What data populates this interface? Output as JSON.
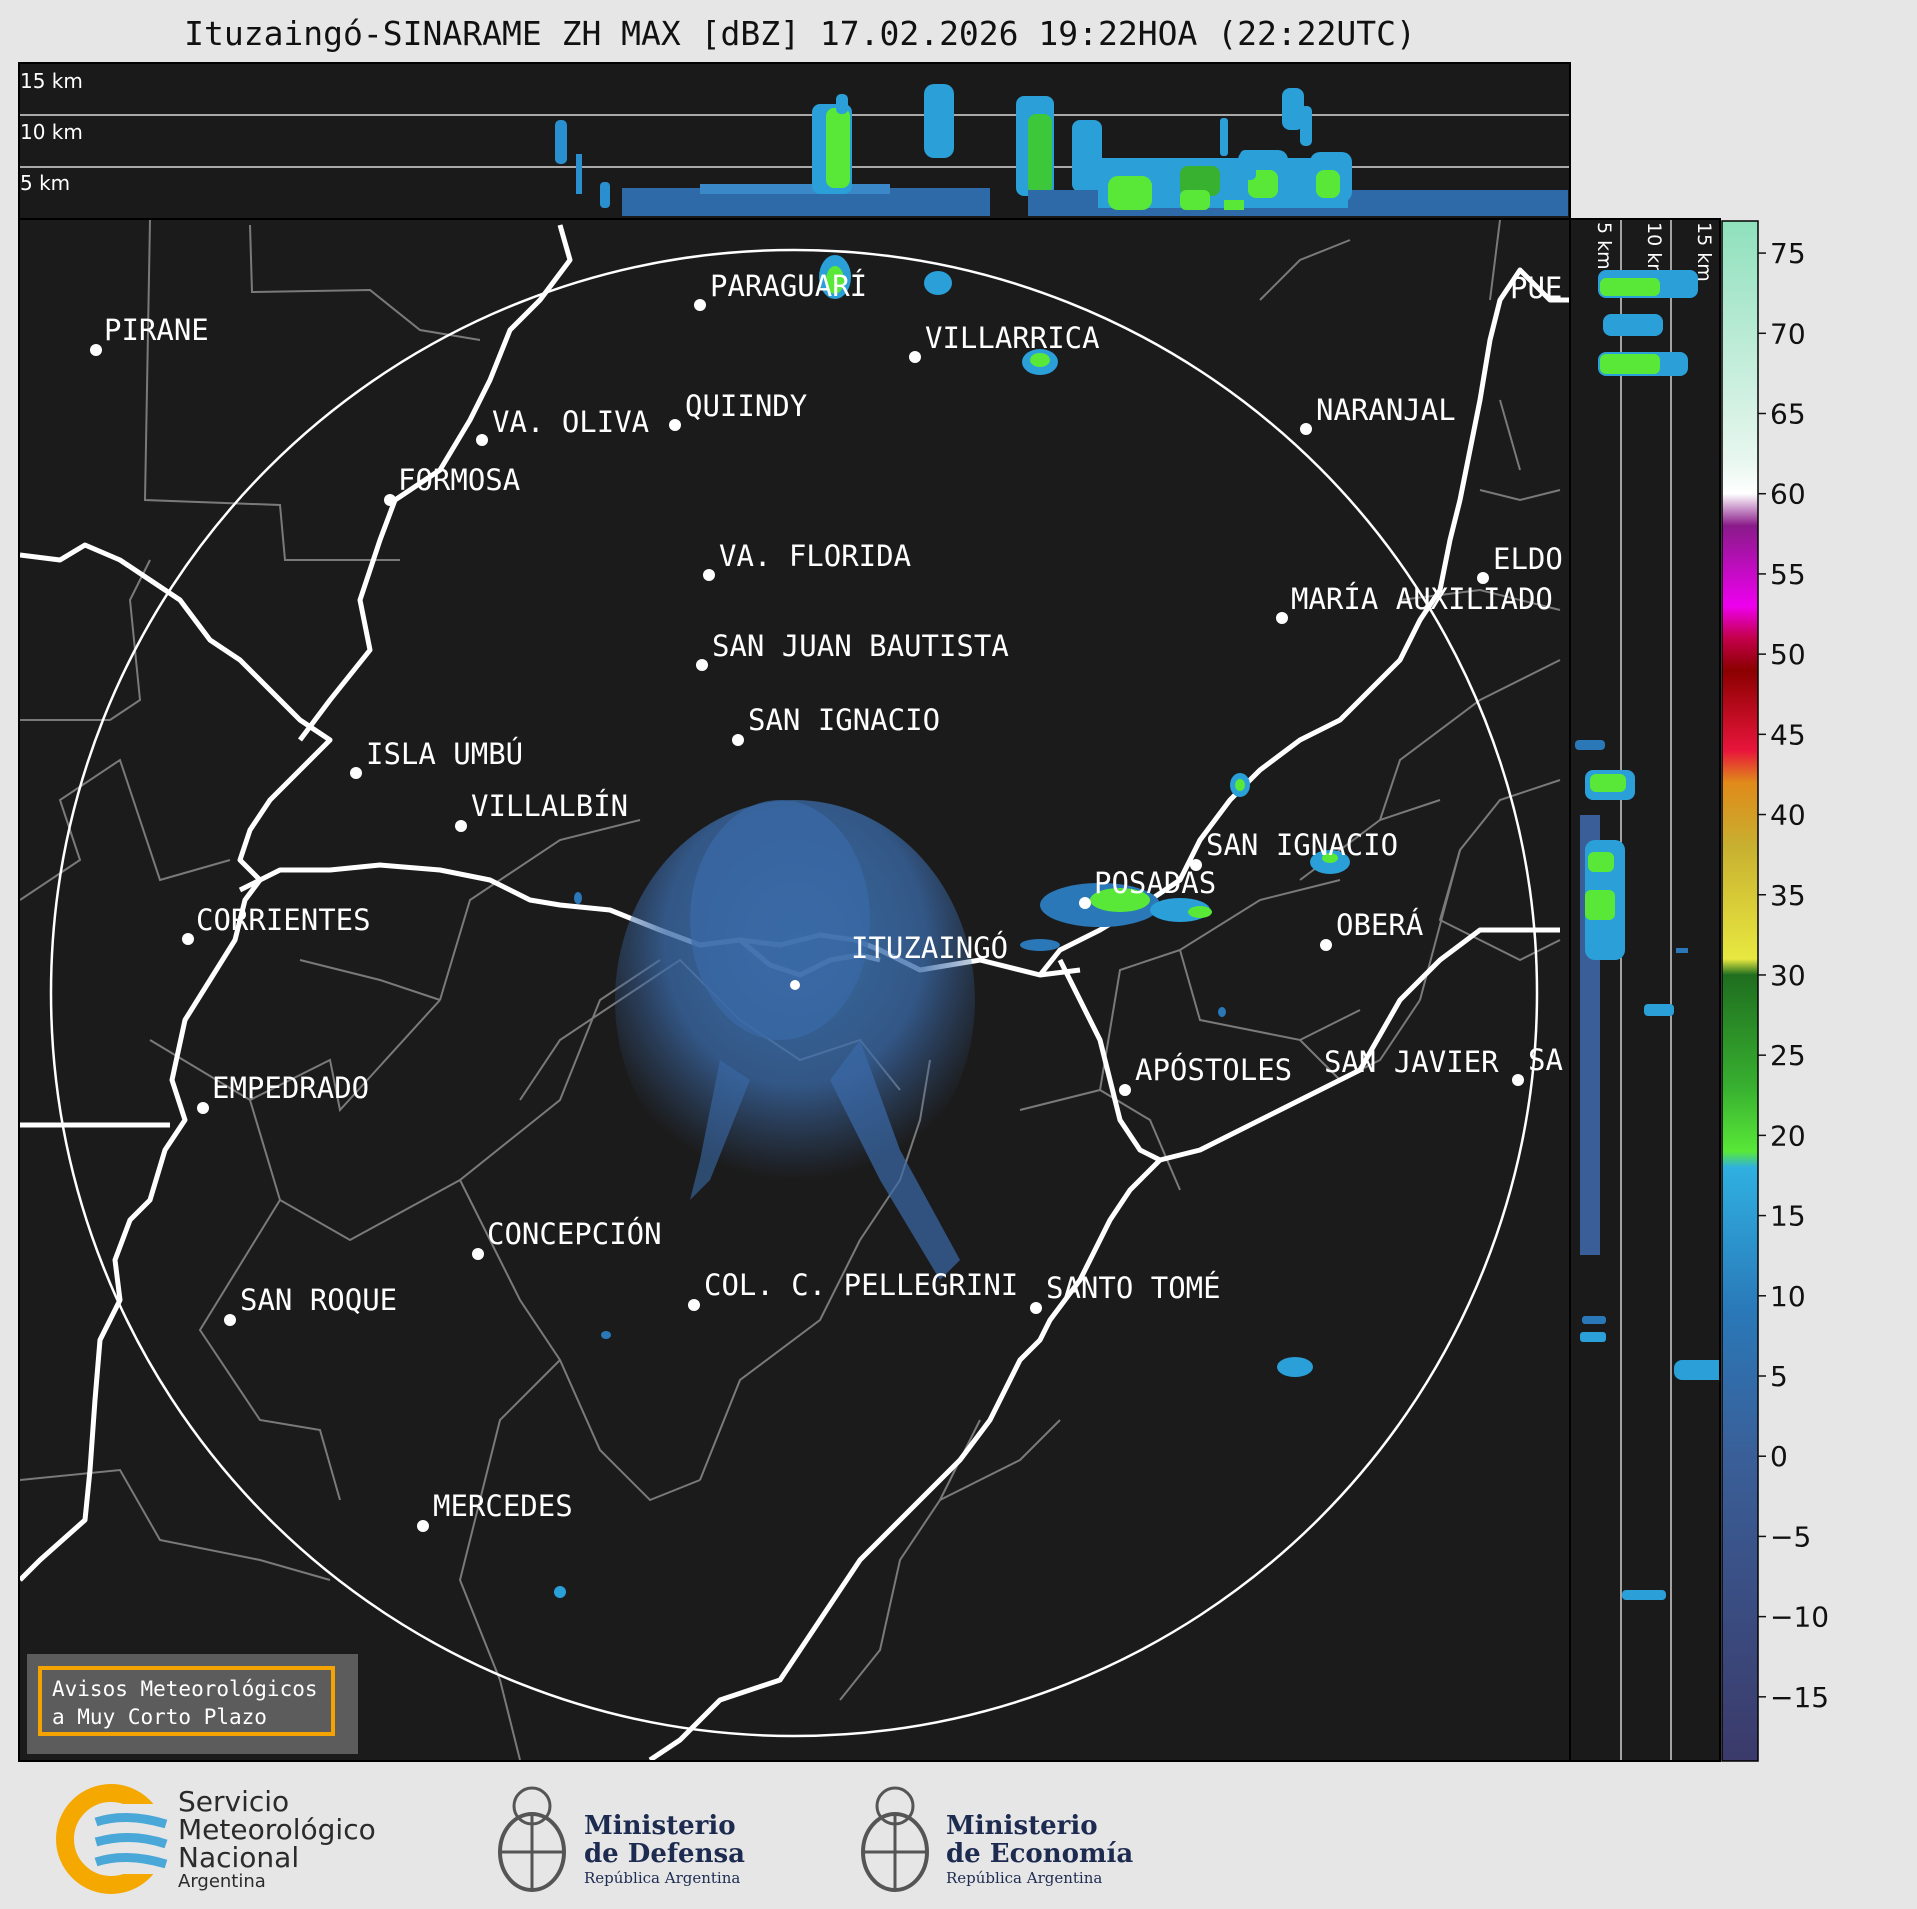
{
  "title": "Ituzaingó-SINARAME ZH MAX [dBZ] 17.02.2026 19:22HOA (22:22UTC)",
  "top_panel": {
    "heights": [
      "15 km",
      "10 km",
      "5 km"
    ]
  },
  "side_panel": {
    "heights": [
      "5 km",
      "10 km",
      "15 km"
    ]
  },
  "colorbar": {
    "unit": "dBZ",
    "ticks": [
      "75",
      "70",
      "65",
      "60",
      "55",
      "50",
      "45",
      "40",
      "35",
      "30",
      "25",
      "20",
      "15",
      "10",
      "5",
      "0",
      "−5",
      "−10",
      "−15"
    ],
    "stops": [
      {
        "value": 77,
        "color": "#8fe0bd"
      },
      {
        "value": 62,
        "color": "#e8f7ef"
      },
      {
        "value": 60,
        "color": "#ffffff"
      },
      {
        "value": 58,
        "color": "#8a1a8a"
      },
      {
        "value": 53,
        "color": "#ee00ee"
      },
      {
        "value": 51,
        "color": "#c4004a"
      },
      {
        "value": 49,
        "color": "#8b0000"
      },
      {
        "value": 44,
        "color": "#e8153b"
      },
      {
        "value": 42,
        "color": "#e08a1a"
      },
      {
        "value": 38,
        "color": "#c8b030"
      },
      {
        "value": 31,
        "color": "#e8e840"
      },
      {
        "value": 30,
        "color": "#1f6e1f"
      },
      {
        "value": 23,
        "color": "#38b030"
      },
      {
        "value": 19,
        "color": "#59e838"
      },
      {
        "value": 18,
        "color": "#2fb0e0"
      },
      {
        "value": 9,
        "color": "#2a78b8"
      },
      {
        "value": 0,
        "color": "#3a5f98"
      },
      {
        "value": -19,
        "color": "#3b3a6a"
      }
    ]
  },
  "radar_site": "ITUZAINGÓ",
  "cities": [
    {
      "name": "PIRANE"
    },
    {
      "name": "PARAGUARÍ"
    },
    {
      "name": "VILLARRICA"
    },
    {
      "name": "QUIINDY"
    },
    {
      "name": "VA. OLIVA"
    },
    {
      "name": "FORMOSA"
    },
    {
      "name": "NARANJAL"
    },
    {
      "name": "PUE"
    },
    {
      "name": "VA. FLORIDA"
    },
    {
      "name": "ELDO"
    },
    {
      "name": "MARÍA AUXILIADO"
    },
    {
      "name": "SAN JUAN BAUTISTA"
    },
    {
      "name": "SAN IGNACIO"
    },
    {
      "name": "ISLA UMBÚ"
    },
    {
      "name": "VILLALBÍN"
    },
    {
      "name": "SAN IGNACIO"
    },
    {
      "name": "POSADAS"
    },
    {
      "name": "CORRIENTES"
    },
    {
      "name": "OBERÁ"
    },
    {
      "name": "EMPEDRADO"
    },
    {
      "name": "APÓSTOLES"
    },
    {
      "name": "SAN JAVIER"
    },
    {
      "name": "SA"
    },
    {
      "name": "CONCEPCIÓN"
    },
    {
      "name": "COL. C. PELLEGRINI"
    },
    {
      "name": "SANTO TOMÉ"
    },
    {
      "name": "SAN ROQUE"
    },
    {
      "name": "MERCEDES"
    }
  ],
  "warning_box": {
    "line1": "Avisos Meteorológicos",
    "line2": "a Muy Corto Plazo"
  },
  "logos": {
    "smn": {
      "line1": "Servicio",
      "line2": "Meteorológico",
      "line3": "Nacional",
      "line4": "Argentina"
    },
    "defensa": {
      "line1": "Ministerio",
      "line2": "de Defensa",
      "line3": "República Argentina"
    },
    "economia": {
      "line1": "Ministerio",
      "line2": "de Economía",
      "line3": "República Argentina"
    }
  }
}
